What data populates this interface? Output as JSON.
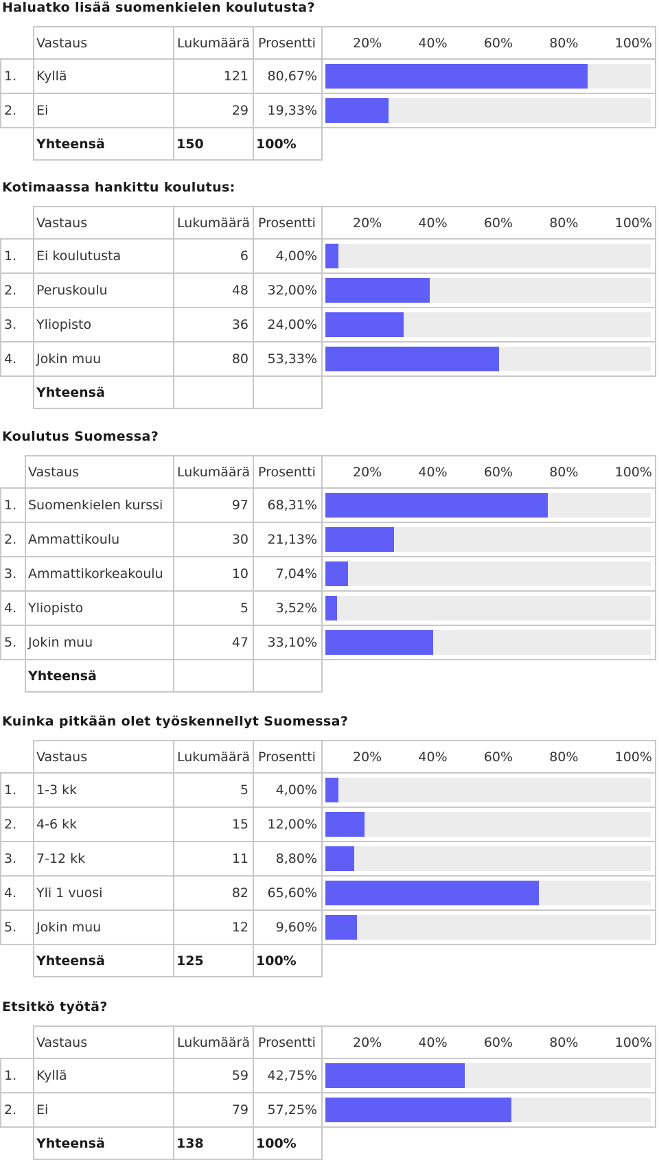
{
  "headers": {
    "answer": "Vastaus",
    "count": "Lukumäärä",
    "percent": "Prosentti",
    "scale": [
      "20%",
      "40%",
      "60%",
      "80%",
      "100%"
    ]
  },
  "questions": [
    {
      "title": "Haluatko lisää suomenkielen koulutusta?",
      "rows": [
        {
          "num": "1.",
          "label": "Kyllä",
          "count": "121",
          "percent": "80,67%",
          "value": 80.67
        },
        {
          "num": "2.",
          "label": "Ei",
          "count": "29",
          "percent": "19,33%",
          "value": 19.33
        }
      ],
      "total": {
        "label": "Yhteensä",
        "count": "150",
        "percent": "100%"
      }
    },
    {
      "title": "Kotimaassa hankittu koulutus:",
      "rows": [
        {
          "num": "1.",
          "label": "Ei koulutusta",
          "count": "6",
          "percent": "4,00%",
          "value": 4.0
        },
        {
          "num": "2.",
          "label": "Peruskoulu",
          "count": "48",
          "percent": "32,00%",
          "value": 32.0
        },
        {
          "num": "3.",
          "label": "Yliopisto",
          "count": "36",
          "percent": "24,00%",
          "value": 24.0
        },
        {
          "num": "4.",
          "label": "Jokin muu",
          "count": "80",
          "percent": "53,33%",
          "value": 53.33
        }
      ],
      "total": {
        "label": "Yhteensä",
        "count": "",
        "percent": ""
      }
    },
    {
      "title": "Koulutus Suomessa?",
      "rows": [
        {
          "num": "1.",
          "label": "Suomenkielen kurssi",
          "count": "97",
          "percent": "68,31%",
          "value": 68.31
        },
        {
          "num": "2.",
          "label": "Ammattikoulu",
          "count": "30",
          "percent": "21,13%",
          "value": 21.13
        },
        {
          "num": "3.",
          "label": "Ammattikorkeakoulu",
          "count": "10",
          "percent": "7,04%",
          "value": 7.04
        },
        {
          "num": "4.",
          "label": "Yliopisto",
          "count": "5",
          "percent": "3,52%",
          "value": 3.52
        },
        {
          "num": "5.",
          "label": "Jokin muu",
          "count": "47",
          "percent": "33,10%",
          "value": 33.1
        }
      ],
      "total": {
        "label": "Yhteensä",
        "count": "",
        "percent": ""
      }
    },
    {
      "title": "Kuinka pitkään olet työskennellyt Suomessa?",
      "rows": [
        {
          "num": "1.",
          "label": "1-3 kk",
          "count": "5",
          "percent": "4,00%",
          "value": 4.0
        },
        {
          "num": "2.",
          "label": "4-6 kk",
          "count": "15",
          "percent": "12,00%",
          "value": 12.0
        },
        {
          "num": "3.",
          "label": "7-12 kk",
          "count": "11",
          "percent": "8,80%",
          "value": 8.8
        },
        {
          "num": "4.",
          "label": "Yli 1 vuosi",
          "count": "82",
          "percent": "65,60%",
          "value": 65.6
        },
        {
          "num": "5.",
          "label": "Jokin muu",
          "count": "12",
          "percent": "9,60%",
          "value": 9.6
        }
      ],
      "total": {
        "label": "Yhteensä",
        "count": "125",
        "percent": "100%"
      }
    },
    {
      "title": "Etsitkö työtä?",
      "rows": [
        {
          "num": "1.",
          "label": "Kyllä",
          "count": "59",
          "percent": "42,75%",
          "value": 42.75
        },
        {
          "num": "2.",
          "label": "Ei",
          "count": "79",
          "percent": "57,25%",
          "value": 57.25
        }
      ],
      "total": {
        "label": "Yhteensä",
        "count": "138",
        "percent": "100%"
      }
    }
  ],
  "colors": {
    "bar": "#5f5ff7",
    "track": "#ececec",
    "border": "#c8c8c8"
  }
}
